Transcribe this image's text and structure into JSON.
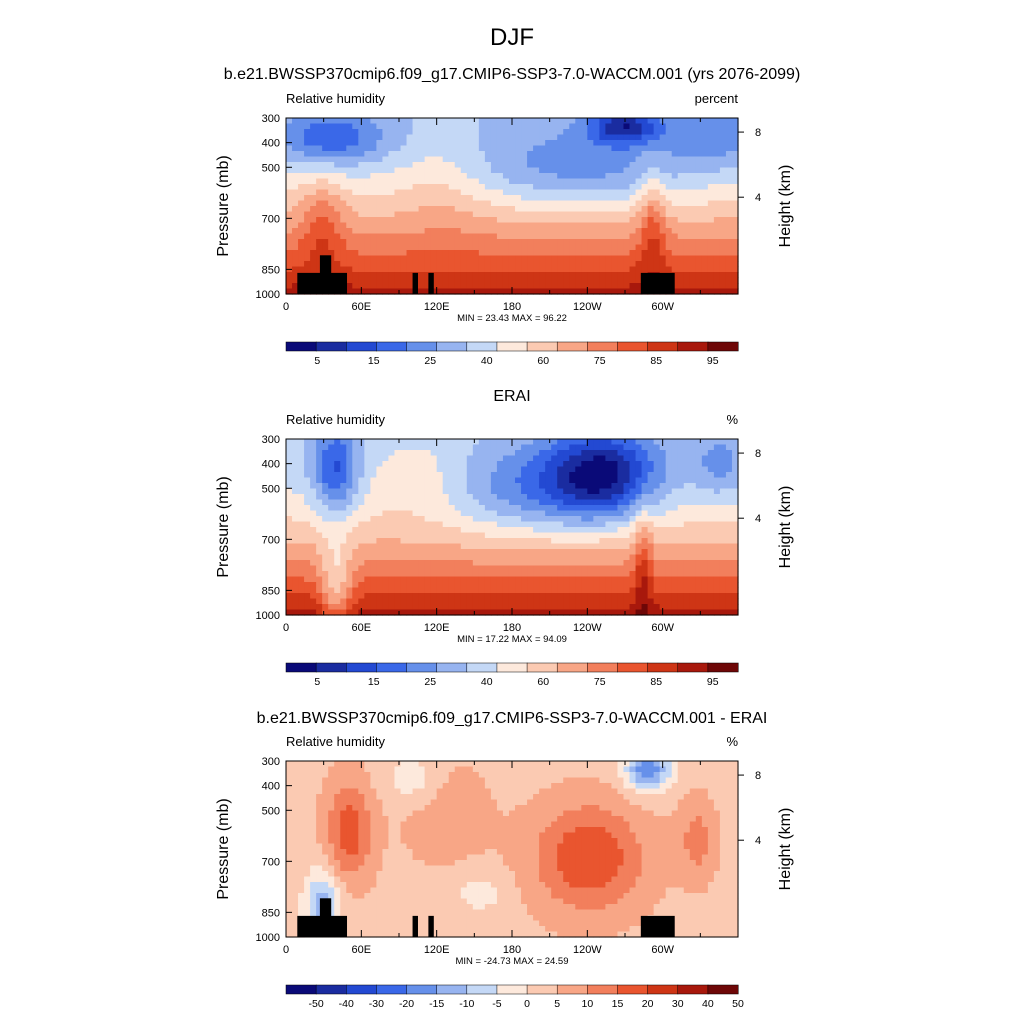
{
  "page_title": "DJF",
  "chart_data": [
    {
      "type": "heatmap",
      "title": "b.e21.BWSSP370cmip6.f09_g17.CMIP6-SSP3-7.0-WACCM.001 (yrs 2076-2099)",
      "left_label": "Relative humidity",
      "right_label": "percent",
      "ylabel": "Pressure (mb)",
      "ylabel_right": "Height (km)",
      "x_ticks": [
        "0",
        "60E",
        "120E",
        "180",
        "120W",
        "60W"
      ],
      "y_ticks": [
        "300",
        "400",
        "500",
        "700",
        "850",
        "1000"
      ],
      "height_ticks": [
        "8",
        "4"
      ],
      "stats": "MIN =  23.43  MAX =  96.22",
      "colorbar_labels": [
        "5",
        "15",
        "25",
        "40",
        "60",
        "75",
        "85",
        "95"
      ],
      "range": [
        23.43,
        96.22
      ],
      "kind": "model"
    },
    {
      "type": "heatmap",
      "title": "ERAI",
      "left_label": "Relative humidity",
      "right_label": "%",
      "ylabel": "Pressure (mb)",
      "ylabel_right": "Height (km)",
      "x_ticks": [
        "0",
        "60E",
        "120E",
        "180",
        "120W",
        "60W"
      ],
      "y_ticks": [
        "300",
        "400",
        "500",
        "700",
        "850",
        "1000"
      ],
      "height_ticks": [
        "8",
        "4"
      ],
      "stats": "MIN =  17.22  MAX =  94.09",
      "colorbar_labels": [
        "5",
        "15",
        "25",
        "40",
        "60",
        "75",
        "85",
        "95"
      ],
      "range": [
        17.22,
        94.09
      ],
      "kind": "obs"
    },
    {
      "type": "heatmap",
      "title": "b.e21.BWSSP370cmip6.f09_g17.CMIP6-SSP3-7.0-WACCM.001 - ERAI",
      "left_label": "Relative humidity",
      "right_label": "%",
      "ylabel": "Pressure (mb)",
      "ylabel_right": "Height (km)",
      "x_ticks": [
        "0",
        "60E",
        "120E",
        "180",
        "120W",
        "60W"
      ],
      "y_ticks": [
        "300",
        "400",
        "500",
        "700",
        "850",
        "1000"
      ],
      "height_ticks": [
        "8",
        "4"
      ],
      "stats": "MIN = -24.73  MAX =  24.59",
      "colorbar_labels": [
        "-50",
        "-40",
        "-30",
        "-20",
        "-15",
        "-10",
        "-5",
        "0",
        "5",
        "10",
        "15",
        "20",
        "30",
        "40",
        "50"
      ],
      "range": [
        -24.73,
        24.59
      ],
      "kind": "diff"
    }
  ],
  "colors": {
    "full_palette": [
      "#0a0a78",
      "#1a2ca0",
      "#2349d2",
      "#3a68e8",
      "#6690ea",
      "#97b4f0",
      "#c4d8f6",
      "#fde9dc",
      "#fbcab2",
      "#f8a686",
      "#f27f5c",
      "#e9552f",
      "#ce3515",
      "#a8180c",
      "#6e0707"
    ],
    "diff_palette": [
      "#0a0a78",
      "#1a2ca0",
      "#2349d2",
      "#3a68e8",
      "#6690ea",
      "#97b4f0",
      "#c4d8f6",
      "#fde9dc",
      "#fbcab2",
      "#f8a686",
      "#f27f5c",
      "#e9552f",
      "#ce3515",
      "#a8180c",
      "#6e0707"
    ],
    "topography": "#000000"
  }
}
